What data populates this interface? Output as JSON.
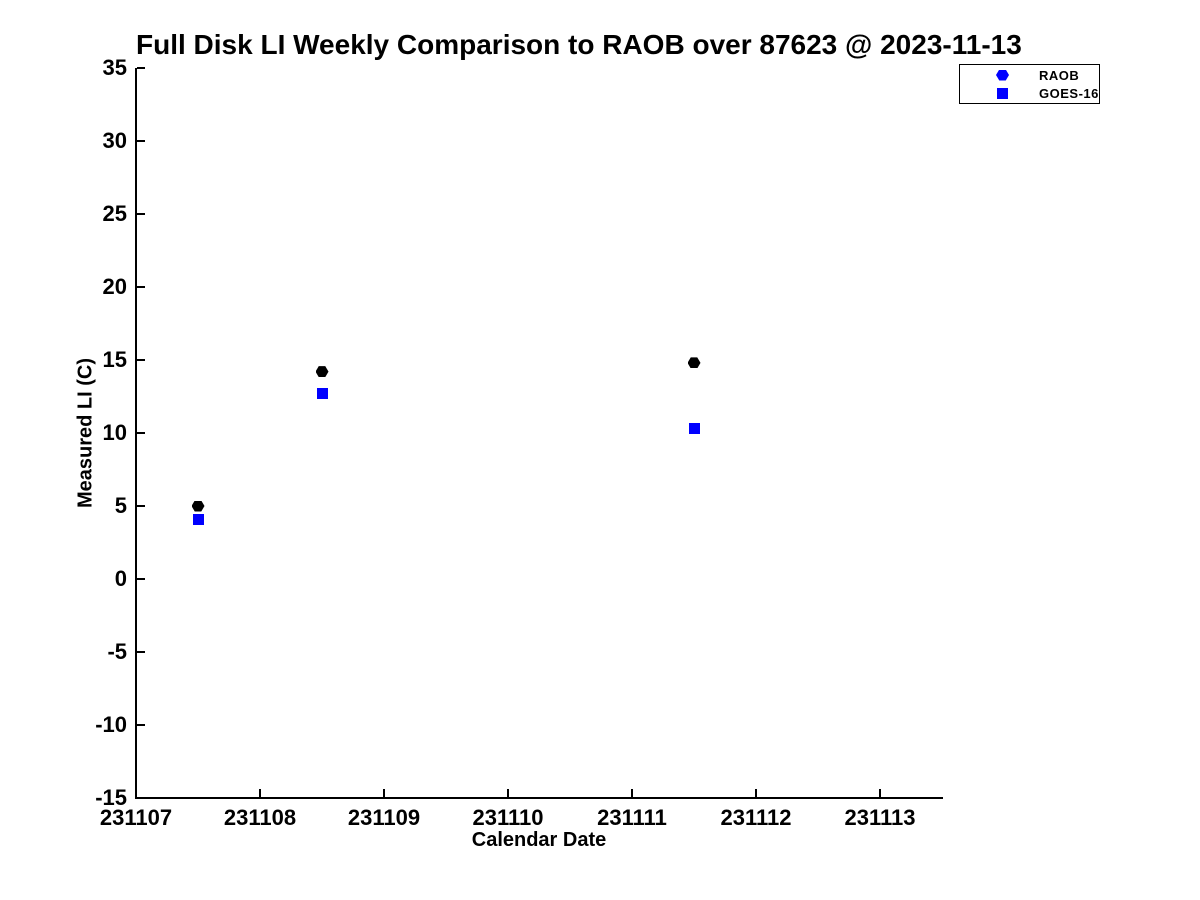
{
  "chart_data": {
    "type": "scatter",
    "title": "Full Disk LI Weekly Comparison to RAOB over 87623 @ 2023-11-13",
    "xlabel": "Calendar Date",
    "ylabel": "Measured LI (C)",
    "xlim": [
      231107,
      231113.5
    ],
    "ylim": [
      -15,
      35
    ],
    "x_ticks": [
      231107,
      231108,
      231109,
      231110,
      231111,
      231112,
      231113
    ],
    "y_ticks": [
      35,
      30,
      25,
      20,
      15,
      10,
      5,
      0,
      -5,
      -10,
      -15
    ],
    "grid": false,
    "legend_position": "top-right",
    "series": [
      {
        "name": "RAOB",
        "marker": "hexagon",
        "color": "#000000",
        "legend_marker_color": "#0000ff",
        "points": [
          {
            "x": 231107.5,
            "y": 5.0
          },
          {
            "x": 231108.5,
            "y": 14.2
          },
          {
            "x": 231111.5,
            "y": 14.8
          }
        ]
      },
      {
        "name": "GOES-16",
        "marker": "square",
        "color": "#0000ff",
        "legend_marker_color": "#0000ff",
        "points": [
          {
            "x": 231107.5,
            "y": 4.1
          },
          {
            "x": 231108.5,
            "y": 12.7
          },
          {
            "x": 231111.5,
            "y": 10.3
          }
        ]
      }
    ],
    "colors": {
      "background": "#ffffff",
      "axis": "#000000",
      "text": "#000000",
      "blue": "#0000ff",
      "black": "#000000"
    }
  }
}
